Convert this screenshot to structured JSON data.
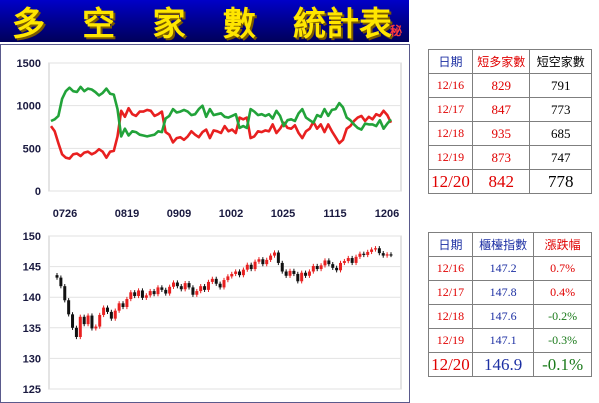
{
  "header": {
    "title_chars": [
      "多",
      "空",
      "家",
      "數",
      "統計表"
    ],
    "tag": "秘"
  },
  "colors": {
    "long": "#e82020",
    "short": "#22a33a",
    "up": "#e82020",
    "down": "#111111",
    "bg_panel": "#ffffff"
  },
  "chart_data": [
    {
      "type": "line",
      "x_ticks": [
        "0726",
        "0819",
        "0909",
        "1002",
        "1025",
        "1115",
        "1206"
      ],
      "ylim": [
        0,
        1500
      ],
      "y_ticks": [
        0,
        500,
        1000,
        1500
      ],
      "series": [
        {
          "name": "短多家數",
          "color": "#e82020",
          "values": [
            760,
            700,
            560,
            430,
            390,
            380,
            430,
            440,
            410,
            450,
            460,
            430,
            450,
            490,
            460,
            390,
            460,
            470,
            640,
            940,
            870,
            970,
            900,
            880,
            930,
            930,
            950,
            940,
            880,
            900,
            930,
            690,
            660,
            570,
            620,
            630,
            600,
            640,
            700,
            660,
            630,
            690,
            720,
            620,
            710,
            700,
            680,
            760,
            700,
            720,
            680,
            860,
            840,
            860,
            620,
            640,
            700,
            690,
            710,
            700,
            780,
            680,
            730,
            800,
            740,
            730,
            770,
            680,
            620,
            700,
            730,
            810,
            730,
            780,
            690,
            780,
            700,
            630,
            560,
            600,
            730,
            760,
            820,
            860,
            880,
            820,
            870,
            840,
            900,
            880,
            940,
            890,
            800
          ]
        },
        {
          "name": "短空家數",
          "color": "#22a33a",
          "values": [
            820,
            840,
            880,
            1080,
            1170,
            1210,
            1170,
            1160,
            1220,
            1170,
            1200,
            1190,
            1160,
            1120,
            1150,
            1200,
            1140,
            1130,
            960,
            640,
            730,
            650,
            700,
            690,
            660,
            650,
            640,
            650,
            660,
            700,
            690,
            850,
            880,
            960,
            920,
            930,
            950,
            930,
            890,
            900,
            960,
            1000,
            870,
            960,
            890,
            900,
            910,
            870,
            860,
            880,
            900,
            740,
            760,
            740,
            960,
            930,
            890,
            900,
            880,
            900,
            850,
            940,
            880,
            760,
            830,
            840,
            820,
            910,
            960,
            860,
            830,
            800,
            890,
            870,
            960,
            880,
            950,
            960,
            1030,
            980,
            860,
            830,
            780,
            740,
            720,
            790,
            780,
            780,
            760,
            830,
            730,
            790,
            840
          ]
        }
      ]
    },
    {
      "type": "candlestick",
      "ylim": [
        125,
        150
      ],
      "y_ticks": [
        125,
        130,
        135,
        140,
        145,
        150
      ],
      "values": [
        143.2,
        141.8,
        139.5,
        137.2,
        135.0,
        133.5,
        136.8,
        135.6,
        137.0,
        134.9,
        135.2,
        137.1,
        138.3,
        137.6,
        136.5,
        137.8,
        139.0,
        138.4,
        139.7,
        140.8,
        140.2,
        141.1,
        139.9,
        140.3,
        141.0,
        140.5,
        141.6,
        141.2,
        140.6,
        141.7,
        142.4,
        141.8,
        141.3,
        142.3,
        141.6,
        140.4,
        141.0,
        141.8,
        141.2,
        142.5,
        143.0,
        142.2,
        141.6,
        142.8,
        143.4,
        143.8,
        144.2,
        143.6,
        144.5,
        145.3,
        144.6,
        145.8,
        146.2,
        145.4,
        146.1,
        146.8,
        147.3,
        145.6,
        144.2,
        143.5,
        144.3,
        143.8,
        142.6,
        144.0,
        143.5,
        144.2,
        145.1,
        144.6,
        145.2,
        146.0,
        145.4,
        144.8,
        144.4,
        145.6,
        145.9,
        146.4,
        145.6,
        146.6,
        147.1,
        146.9,
        147.4,
        147.8,
        148.0,
        147.2,
        146.8,
        147.0,
        146.9
      ]
    }
  ],
  "table1": {
    "headers": [
      "日期",
      "短多家數",
      "短空家數"
    ],
    "rows": [
      {
        "date": "12/16",
        "a": "829",
        "b": "791"
      },
      {
        "date": "12/17",
        "a": "847",
        "b": "773"
      },
      {
        "date": "12/18",
        "a": "935",
        "b": "685"
      },
      {
        "date": "12/19",
        "a": "873",
        "b": "747"
      },
      {
        "date": "12/20",
        "a": "842",
        "b": "778"
      }
    ]
  },
  "table2": {
    "headers": [
      "日期",
      "櫃檯指數",
      "漲跌幅"
    ],
    "rows": [
      {
        "date": "12/16",
        "a": "147.2",
        "b": "0.7%",
        "sign": "up"
      },
      {
        "date": "12/17",
        "a": "147.8",
        "b": "0.4%",
        "sign": "up"
      },
      {
        "date": "12/18",
        "a": "147.6",
        "b": "-0.2%",
        "sign": "down"
      },
      {
        "date": "12/19",
        "a": "147.1",
        "b": "-0.3%",
        "sign": "down"
      },
      {
        "date": "12/20",
        "a": "146.9",
        "b": "-0.1%",
        "sign": "down"
      }
    ]
  }
}
